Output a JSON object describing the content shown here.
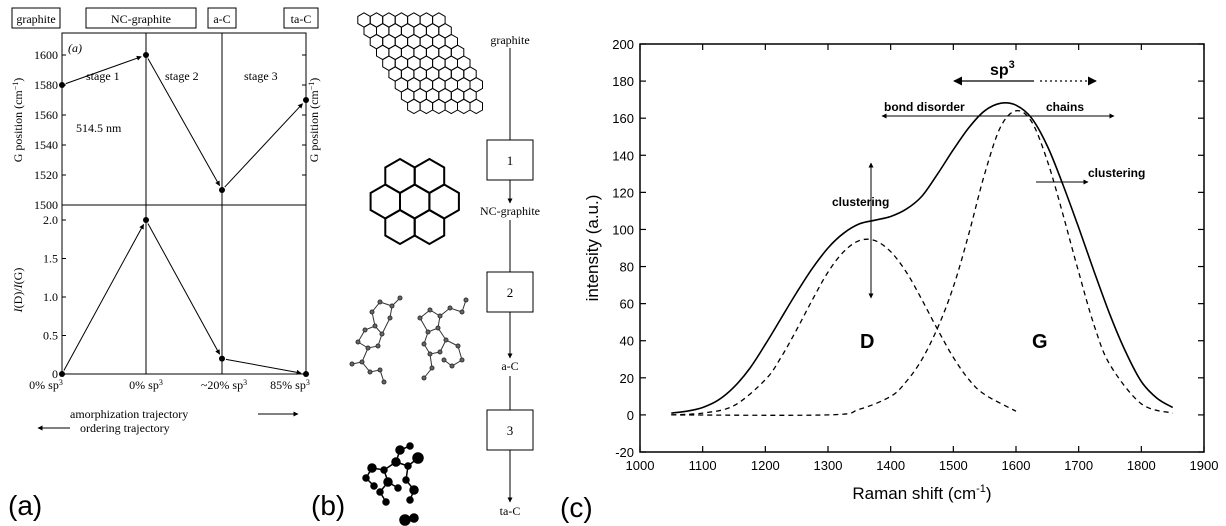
{
  "panel_labels": {
    "a": "(a)",
    "b": "(b)",
    "c": "(c)"
  },
  "panel_a": {
    "header_boxes": [
      "graphite",
      "NC-graphite",
      "a-C",
      "ta-C"
    ],
    "subpanel_label": "(a)",
    "wavelength": "514.5 nm",
    "stages": [
      "stage 1",
      "stage 2",
      "stage 3"
    ],
    "x_tick_labels": [
      "0% sp",
      "0% sp",
      "~20% sp",
      "85% sp"
    ],
    "x_tick_superscript": "3",
    "trajectory_1": "amorphization trajectory",
    "trajectory_2": "ordering trajectory",
    "ylabel_left_top": "G position (cm",
    "ylabel_right_top": "G position (cm",
    "ylabel_unit_sup": "−1",
    "ylabel_bottom_prefix": "I",
    "ylabel_bottom_middle": "(D)/",
    "ylabel_bottom_suffix": "(G)"
  },
  "panel_b": {
    "steps": [
      "1",
      "2",
      "3"
    ],
    "stage_labels": [
      "graphite",
      "NC-graphite",
      "a-C",
      "ta-C"
    ],
    "structure_icons": [
      "graphite-sheet-icon",
      "nc-graphite-rings-icon",
      "a-c-network-icon",
      "ta-c-network-icon"
    ]
  },
  "panel_c_labels": {
    "sp3": "sp",
    "sp3_sup": "3",
    "bond_disorder": "bond disorder",
    "chains": "chains",
    "clustering_left": "clustering",
    "clustering_right": "clustering",
    "D": "D",
    "G": "G",
    "ylabel": "intensity (a.u.)",
    "xlabel_prefix": "Raman shift (cm",
    "xlabel_sup": "-1",
    "xlabel_suffix": ")"
  },
  "chart_data": [
    {
      "type": "line",
      "panel": "a-top",
      "x": [
        0,
        1,
        2,
        3
      ],
      "y": [
        1580,
        1600,
        1510,
        1570
      ],
      "ylabel": "G position (cm−1)",
      "ylim": [
        1500,
        1610
      ],
      "yticks": [
        1500,
        1520,
        1540,
        1560,
        1580,
        1600
      ],
      "grid": false
    },
    {
      "type": "line",
      "panel": "a-bottom",
      "x": [
        0,
        1,
        2,
        3
      ],
      "y": [
        0,
        2.0,
        0.2,
        0
      ],
      "ylabel": "I(D)/I(G)",
      "ylim": [
        0,
        2.2
      ],
      "yticks": [
        0,
        0.5,
        1.0,
        1.5,
        2.0
      ],
      "grid": false
    },
    {
      "type": "line",
      "panel": "c",
      "xlabel": "Raman shift (cm-1)",
      "ylabel": "intensity (a.u.)",
      "xlim": [
        1000,
        1900
      ],
      "ylim": [
        -20,
        200
      ],
      "xticks": [
        1000,
        1100,
        1200,
        1300,
        1400,
        1500,
        1600,
        1700,
        1800,
        1900
      ],
      "yticks": [
        -20,
        0,
        20,
        40,
        60,
        80,
        100,
        120,
        140,
        160,
        180,
        200
      ],
      "grid": false,
      "series": [
        {
          "style": "solid",
          "x": [
            1050,
            1075,
            1100,
            1125,
            1150,
            1175,
            1200,
            1225,
            1250,
            1275,
            1300,
            1325,
            1350,
            1375,
            1400,
            1425,
            1450,
            1475,
            1500,
            1525,
            1550,
            1575,
            1600,
            1625,
            1650,
            1675,
            1700,
            1725,
            1750,
            1775,
            1800,
            1825,
            1850
          ],
          "y": [
            1,
            2,
            4,
            8,
            15,
            25,
            38,
            52,
            66,
            79,
            90,
            98,
            103,
            105,
            107,
            111,
            118,
            130,
            143,
            155,
            164,
            168,
            167,
            160,
            145,
            124,
            101,
            77,
            54,
            34,
            18,
            9,
            4
          ]
        },
        {
          "style": "dashed",
          "x": [
            1050,
            1100,
            1150,
            1200,
            1225,
            1250,
            1275,
            1300,
            1325,
            1350,
            1375,
            1400,
            1425,
            1450,
            1475,
            1500,
            1525,
            1550,
            1600
          ],
          "y": [
            0,
            1,
            5,
            19,
            31,
            46,
            62,
            77,
            88,
            94,
            94,
            88,
            77,
            62,
            46,
            31,
            19,
            11,
            2
          ]
        },
        {
          "style": "dashed",
          "x": [
            1050,
            1300,
            1350,
            1400,
            1425,
            1450,
            1475,
            1500,
            1525,
            1550,
            1575,
            1600,
            1625,
            1650,
            1675,
            1700,
            1725,
            1750,
            1800,
            1850
          ],
          "y": [
            0,
            0,
            3,
            10,
            18,
            30,
            47,
            69,
            98,
            130,
            155,
            164,
            158,
            137,
            108,
            77,
            48,
            27,
            6,
            1
          ]
        }
      ]
    }
  ]
}
